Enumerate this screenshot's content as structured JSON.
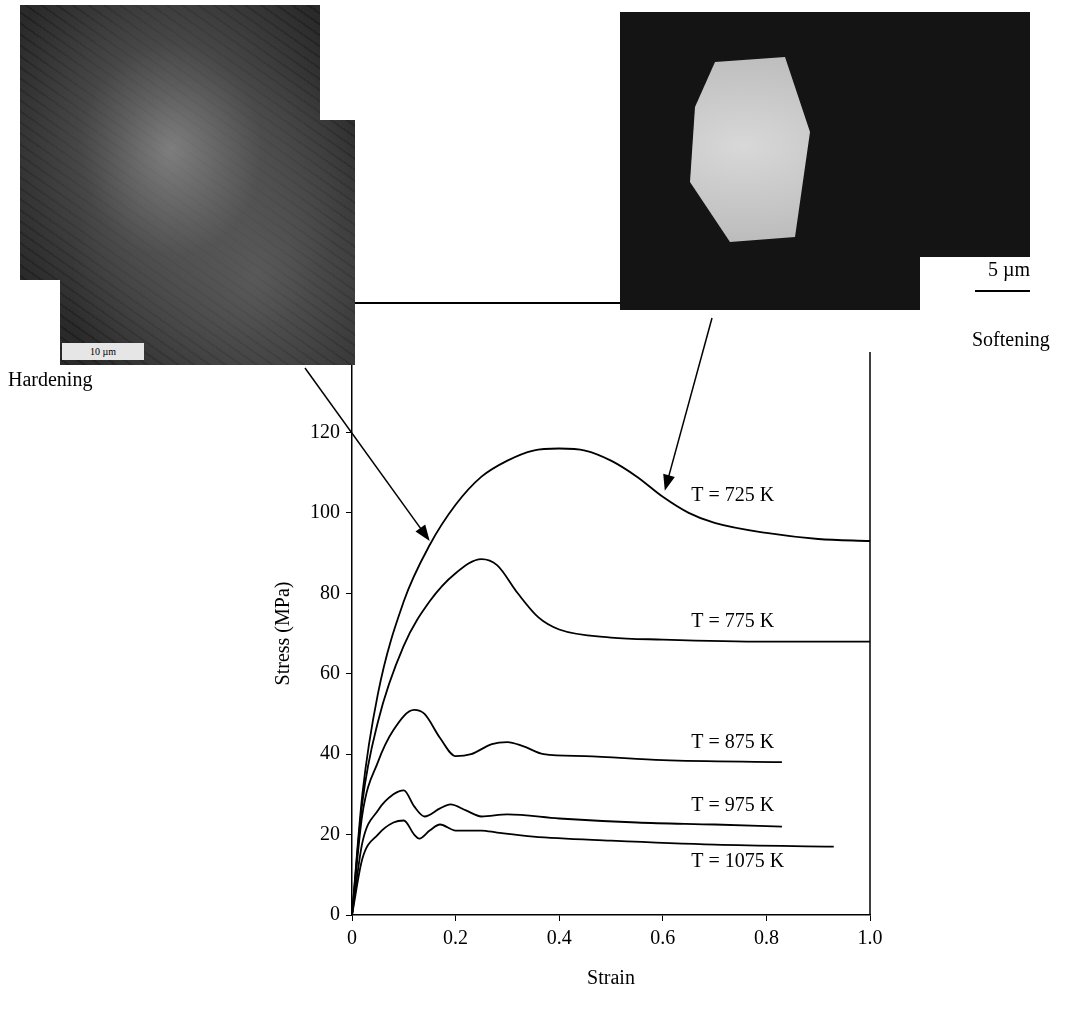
{
  "chart_data": {
    "type": "line",
    "x_label": "Strain",
    "y_label": "Stress (MPa)",
    "xlim": [
      0,
      1
    ],
    "xticks": [
      0,
      0.2,
      0.4,
      0.6,
      0.8,
      {
        "value": 1,
        "label": "1.0"
      }
    ],
    "ylim": [
      0,
      140
    ],
    "yticks": [
      0,
      20,
      40,
      60,
      80,
      100,
      120
    ],
    "grid": false,
    "annotations": [
      {
        "text": "Hardening",
        "scale_bar": "10 µm"
      },
      {
        "text": "Softening",
        "scale_bar": "5 µm"
      }
    ],
    "series": [
      {
        "name": "T = 725 K",
        "color": "#000000",
        "x": [
          0,
          0.02,
          0.05,
          0.1,
          0.15,
          0.2,
          0.25,
          0.3,
          0.35,
          0.4,
          0.45,
          0.5,
          0.55,
          0.6,
          0.65,
          0.7,
          0.8,
          0.9,
          1.0
        ],
        "values": [
          0,
          30,
          55,
          78,
          92,
          102,
          109,
          113,
          115.5,
          116,
          115.5,
          113,
          109,
          104,
          100,
          97.5,
          95,
          93.5,
          93
        ]
      },
      {
        "name": "T = 775 K",
        "color": "#000000",
        "x": [
          0,
          0.02,
          0.05,
          0.1,
          0.15,
          0.2,
          0.25,
          0.28,
          0.32,
          0.36,
          0.4,
          0.5,
          0.6,
          0.8,
          1.0
        ],
        "values": [
          0,
          28,
          48,
          67,
          78,
          85,
          88.5,
          87,
          80,
          74,
          71,
          69,
          68.5,
          68,
          68
        ]
      },
      {
        "name": "T = 875 K",
        "color": "#000000",
        "x": [
          0,
          0.02,
          0.05,
          0.08,
          0.12,
          0.14,
          0.17,
          0.2,
          0.23,
          0.27,
          0.3,
          0.33,
          0.37,
          0.45,
          0.6,
          0.83
        ],
        "values": [
          0,
          25,
          38,
          46,
          51,
          50,
          44,
          39.5,
          40,
          42.5,
          43,
          42,
          40,
          39.5,
          38.5,
          38
        ]
      },
      {
        "name": "T = 975 K",
        "color": "#000000",
        "x": [
          0,
          0.02,
          0.05,
          0.08,
          0.1,
          0.12,
          0.14,
          0.17,
          0.19,
          0.22,
          0.25,
          0.3,
          0.4,
          0.55,
          0.7,
          0.83
        ],
        "values": [
          0,
          18,
          26,
          30,
          31,
          27,
          24.5,
          26.5,
          27.5,
          26,
          24.5,
          25,
          24,
          23,
          22.5,
          22
        ]
      },
      {
        "name": "T = 1075 K",
        "color": "#000000",
        "x": [
          0,
          0.02,
          0.05,
          0.08,
          0.1,
          0.12,
          0.13,
          0.15,
          0.17,
          0.2,
          0.25,
          0.28,
          0.35,
          0.5,
          0.7,
          0.93
        ],
        "values": [
          0,
          14,
          20,
          23,
          23.5,
          20,
          19,
          21,
          22.5,
          21,
          21,
          20.5,
          19.5,
          18.5,
          17.5,
          17
        ]
      }
    ]
  }
}
